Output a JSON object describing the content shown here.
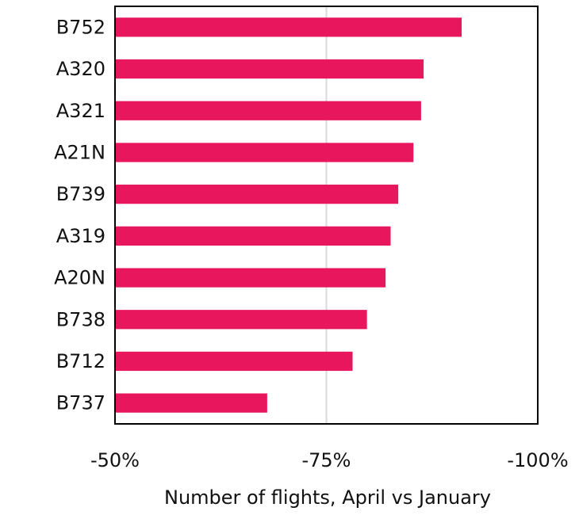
{
  "chart_data": {
    "type": "bar",
    "orientation": "horizontal",
    "categories": [
      "B752",
      "A320",
      "A321",
      "A21N",
      "B739",
      "A319",
      "A20N",
      "B738",
      "B712",
      "B737"
    ],
    "values": [
      -91,
      -86.5,
      -86.2,
      -85.3,
      -83.5,
      -82.6,
      -82,
      -79.8,
      -78.1,
      -68
    ],
    "xlabel": "Number of flights, April vs January",
    "ylabel": "",
    "title": "",
    "xlim": [
      -50,
      -100
    ],
    "ticks": [
      -50,
      -75,
      -100
    ],
    "tick_labels": [
      "-50%",
      "-75%",
      "-100%"
    ],
    "gridlines": [
      -75
    ],
    "grid": "vertical at -75%",
    "bar_color": "#e8175d",
    "grid_color": "#d9d9d9",
    "frame_color": "#000000"
  }
}
